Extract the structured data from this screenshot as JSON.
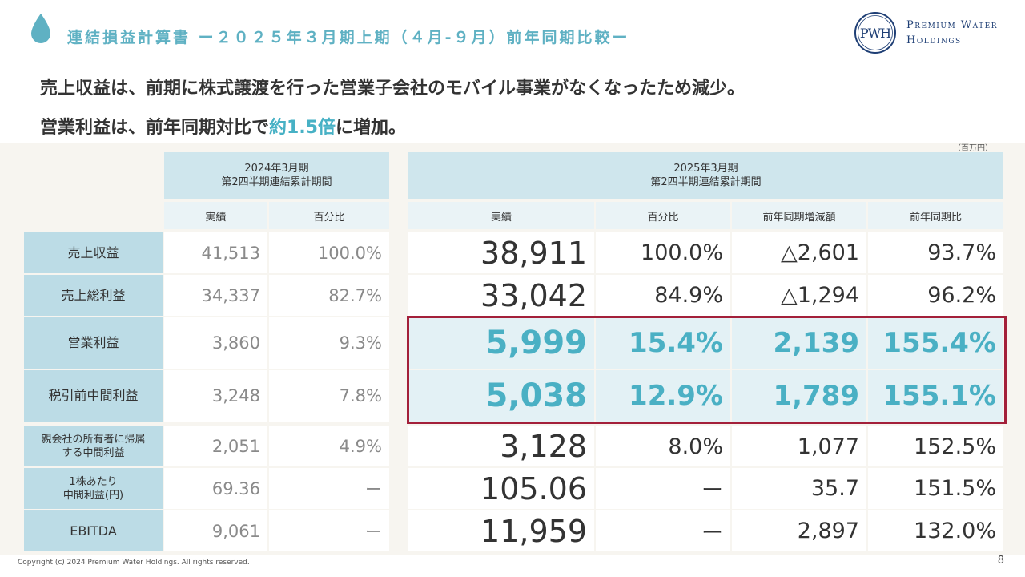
{
  "header": {
    "title": "連結損益計算書 ー２０２５年３月期上期（４月-９月）前年同期比較ー",
    "company_line1": "Premium Water",
    "company_line2": "Holdings",
    "logo_letters": "PWH"
  },
  "lead": {
    "line1": "売上収益は、前期に株式譲渡を行った営業子会社のモバイル事業がなくなったため減少。",
    "line2_prefix": "営業利益は、前年同期対比で",
    "line2_highlight": "約1.5倍",
    "line2_suffix": "に増加。"
  },
  "unit": "（百万円）",
  "table": {
    "period_2024_line1": "2024年3月期",
    "period_2024_line2": "第2四半期連結累計期間",
    "period_2025_line1": "2025年3月期",
    "period_2025_line2": "第2四半期連結累計期間",
    "col_actual_2024": "実績",
    "col_ratio_2024": "百分比",
    "col_actual_2025": "実績",
    "col_ratio_2025": "百分比",
    "col_change": "前年同期増減額",
    "col_yoy": "前年同期比",
    "rows": [
      {
        "label": "売上収益",
        "a24": "41,513",
        "r24": "100.0%",
        "a25": "38,911",
        "r25": "100.0%",
        "chg": "△2,601",
        "yoy": "93.7%"
      },
      {
        "label": "売上総利益",
        "a24": "34,337",
        "r24": "82.7%",
        "a25": "33,042",
        "r25": "84.9%",
        "chg": "△1,294",
        "yoy": "96.2%"
      },
      {
        "label": "営業利益",
        "a24": "3,860",
        "r24": "9.3%",
        "a25": "5,999",
        "r25": "15.4%",
        "chg": "2,139",
        "yoy": "155.4%"
      },
      {
        "label": "税引前中間利益",
        "a24": "3,248",
        "r24": "7.8%",
        "a25": "5,038",
        "r25": "12.9%",
        "chg": "1,789",
        "yoy": "155.1%"
      },
      {
        "label_line1": "親会社の所有者に帰属",
        "label_line2": "する中間利益",
        "a24": "2,051",
        "r24": "4.9%",
        "a25": "3,128",
        "r25": "8.0%",
        "chg": "1,077",
        "yoy": "152.5%"
      },
      {
        "label_line1": "1株あたり",
        "label_line2": "中間利益(円)",
        "a24": "69.36",
        "r24": "ー",
        "a25": "105.06",
        "r25": "ー",
        "chg": "35.7",
        "yoy": "151.5%"
      },
      {
        "label": "EBITDA",
        "a24": "9,061",
        "r24": "ー",
        "a25": "11,959",
        "r25": "ー",
        "chg": "2,897",
        "yoy": "132.0%"
      }
    ]
  },
  "footer": {
    "copyright": "Copyright (c) 2024 Premium Water Holdings. All rights reserved.",
    "page": "8"
  },
  "colors": {
    "accent": "#5fb1c3",
    "header_fill": "#cfe6ed",
    "label_fill": "#bcdce6",
    "highlight_box": "#a3203a",
    "logo_navy": "#1f3f75"
  }
}
